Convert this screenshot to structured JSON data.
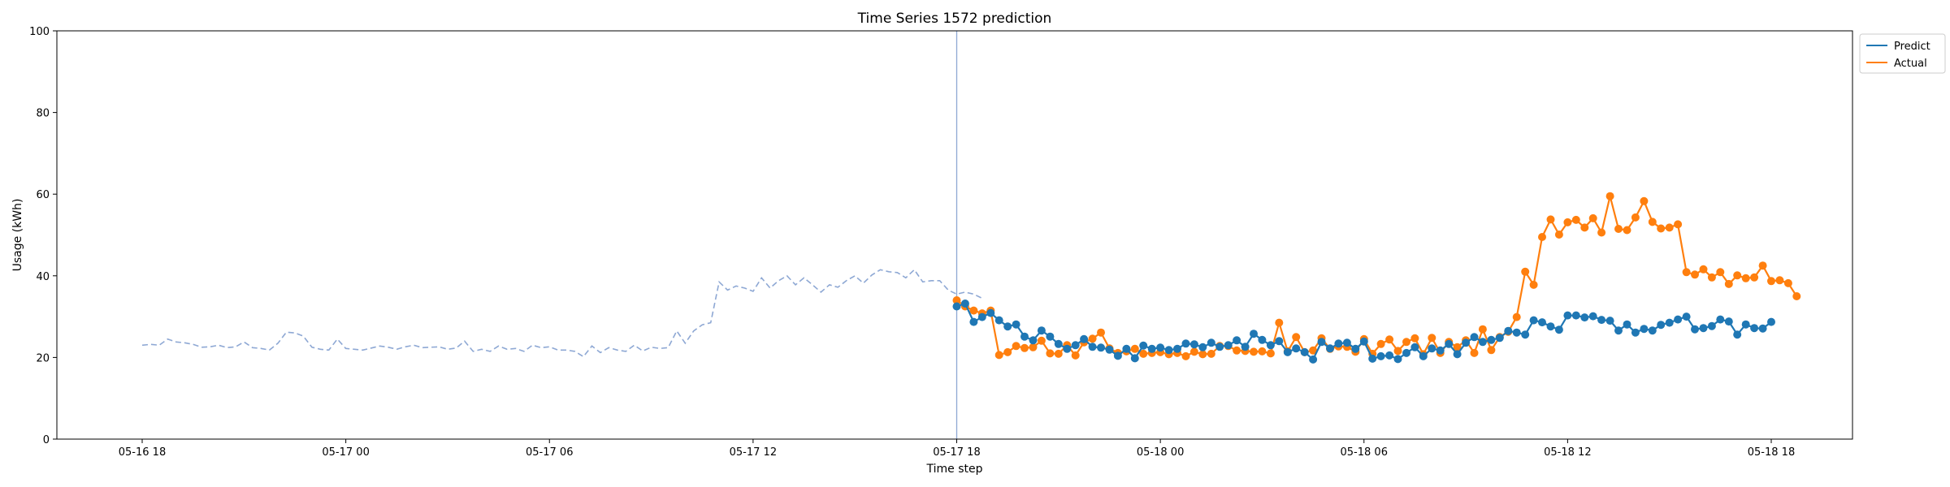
{
  "chart_data": {
    "type": "line",
    "title": "Time Series 1572 prediction",
    "xlabel": "Time step",
    "ylabel": "Usage (kWh)",
    "ylim": [
      0,
      100
    ],
    "yticks": [
      "0",
      "20",
      "40",
      "60",
      "80",
      "100"
    ],
    "xticks": [
      "05-16 18",
      "05-17 00",
      "05-17 06",
      "05-17 12",
      "05-17 18",
      "05-18 00",
      "05-18 06",
      "05-18 12",
      "05-18 18"
    ],
    "grid": false,
    "legend_position": "upper-right-outside",
    "forecast_start": "05-17 18:00",
    "colors": {
      "predict": "#1f77b4",
      "actual": "#ff7f0e",
      "history": "#8ea8d4",
      "divider": "#8ea8d4"
    },
    "series": [
      {
        "name": "",
        "role": "history",
        "style": "dashed",
        "start": "05-16 18:00",
        "step_minutes": 15,
        "values": [
          23,
          23.2,
          23,
          24.5,
          23.8,
          23.6,
          23.2,
          22.5,
          22.6,
          23,
          22.4,
          22.6,
          23.8,
          22.4,
          22.2,
          21.8,
          23.5,
          26.2,
          26,
          25.2,
          22.5,
          22,
          21.8,
          24.5,
          22.2,
          22,
          21.8,
          22.3,
          22.8,
          22.5,
          22,
          22.6,
          23,
          22.4,
          22.5,
          22.6,
          22,
          22.3,
          24,
          21.5,
          22,
          21.5,
          22.8,
          22,
          22.2,
          21.5,
          23,
          22.4,
          22.6,
          21.8,
          21.8,
          21.5,
          20.2,
          22.8,
          21.2,
          22.4,
          21.8,
          21.5,
          23,
          21.6,
          22.5,
          22.2,
          22.4,
          26.5,
          23.5,
          26.5,
          28,
          28.5,
          38.5,
          36.5,
          37.5,
          37,
          36.2,
          39.5,
          37,
          38.8,
          40,
          37.8,
          39.5,
          37.8,
          36,
          37.8,
          37.2,
          38.8,
          40,
          38.2,
          40.2,
          41.5,
          41,
          40.8,
          39.5,
          41.5,
          38.5,
          38.8,
          38.8,
          36.5,
          35.5,
          36,
          35.5,
          34.5
        ]
      },
      {
        "name": "Predict",
        "role": "predict",
        "start": "05-17 18:00",
        "step_minutes": 15,
        "values": [
          32.5,
          33.2,
          28.7,
          29.9,
          30.9,
          29.1,
          27.6,
          28.1,
          25.1,
          24.2,
          26.6,
          25.1,
          23.3,
          22.1,
          23,
          24.5,
          22.6,
          22.4,
          21.9,
          20.4,
          22.1,
          19.8,
          22.9,
          22.1,
          22.4,
          21.8,
          22.1,
          23.4,
          23.2,
          22.5,
          23.6,
          22.6,
          23,
          24.2,
          22.6,
          25.8,
          24.3,
          23,
          24,
          21.3,
          22.2,
          21.3,
          19.5,
          23.8,
          22.2,
          23.4,
          23.6,
          22.1,
          23.9,
          19.7,
          20.3,
          20.5,
          19.6,
          21.1,
          22.5,
          20.3,
          22.2,
          21.7,
          23.3,
          20.8,
          23.6,
          25,
          23.8,
          24.3,
          24.8,
          26.5,
          26.1,
          25.6,
          29.1,
          28.6,
          27.6,
          26.8,
          30.3,
          30.3,
          29.8,
          30.1,
          29.2,
          29,
          26.6,
          28.1,
          26.1,
          27,
          26.6,
          28,
          28.5,
          29.3,
          30,
          26.9,
          27.2,
          27.7,
          29.3,
          28.8,
          25.6,
          28.1,
          27.2,
          27.1,
          28.7
        ]
      },
      {
        "name": "Actual",
        "role": "actual",
        "start": "05-17 18:00",
        "step_minutes": 15,
        "values": [
          34,
          32.5,
          31.5,
          30.8,
          31.5,
          20.6,
          21.3,
          22.8,
          22.3,
          22.5,
          24.1,
          21,
          20.9,
          23,
          20.5,
          23.7,
          24.6,
          26.1,
          22.2,
          21.1,
          21.5,
          22.1,
          20.9,
          21.1,
          21.3,
          20.8,
          21.1,
          20.3,
          21.4,
          20.8,
          20.9,
          22.8,
          22.8,
          21.7,
          21.6,
          21.4,
          21.5,
          21,
          28.5,
          21.5,
          25,
          21.3,
          21.7,
          24.7,
          22.1,
          22.7,
          22.6,
          21.4,
          24.5,
          20.9,
          23.3,
          24.4,
          21.6,
          23.8,
          24.7,
          20.8,
          24.8,
          21.1,
          23.8,
          22.5,
          24.2,
          21.1,
          26.9,
          21.8,
          25,
          26.3,
          29.9,
          41,
          37.8,
          49.5,
          53.8,
          50.1,
          53.1,
          53.7,
          51.8,
          54.1,
          50.6,
          59.5,
          51.5,
          51.2,
          54.3,
          58.3,
          53.2,
          51.6,
          51.8,
          52.6,
          40.9,
          40.3,
          41.6,
          39.6,
          40.9,
          38,
          40.1,
          39.4,
          39.6,
          42.5,
          38.7,
          38.9,
          38.2,
          35
        ]
      }
    ]
  }
}
